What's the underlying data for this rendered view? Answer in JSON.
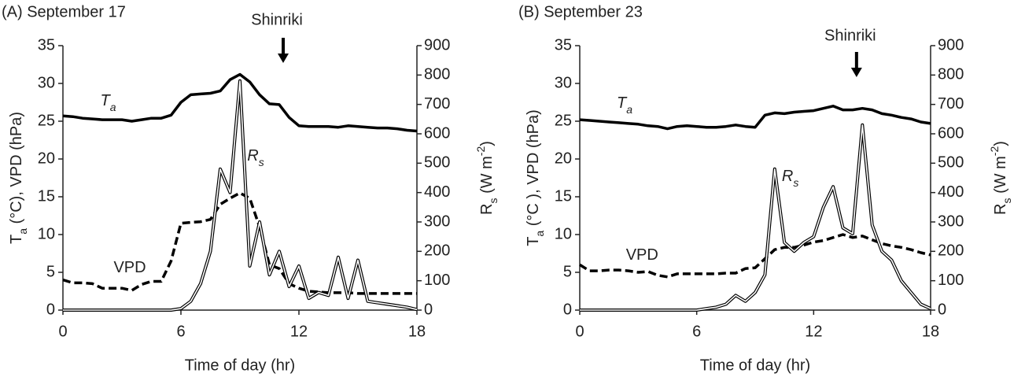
{
  "chart_data": [
    {
      "type": "line",
      "title": "(A) September 17",
      "xlabel": "Time of day (hr)",
      "ylabel": [
        "T",
        {
          "sub": "a"
        },
        " (°C), VPD (hPa)"
      ],
      "y2label": [
        "R",
        {
          "sub": "s"
        },
        " (W m",
        {
          "sup": "-2"
        },
        ")"
      ],
      "xlim": [
        0,
        18
      ],
      "xticks": [
        0,
        6,
        12,
        18
      ],
      "ylim": [
        0,
        35
      ],
      "yticks": [
        0,
        5,
        10,
        15,
        20,
        25,
        30,
        35
      ],
      "y2lim": [
        0,
        900
      ],
      "y2ticks": [
        0,
        100,
        200,
        300,
        400,
        500,
        600,
        700,
        800,
        900
      ],
      "annotations": [
        {
          "text": "Shinriki",
          "x": 11.2
        }
      ],
      "x": [
        0,
        0.5,
        1,
        1.5,
        2,
        2.5,
        3,
        3.5,
        4,
        4.5,
        5,
        5.5,
        6,
        6.5,
        7,
        7.5,
        8,
        8.5,
        9,
        9.5,
        10,
        10.5,
        11,
        11.5,
        12,
        12.5,
        13,
        13.5,
        14,
        14.5,
        15,
        15.5,
        16,
        16.5,
        17,
        17.5,
        18
      ],
      "series": [
        {
          "name": [
            "T",
            {
              "sub": "a"
            }
          ],
          "color": "#000000",
          "style": "solid",
          "values": [
            25.7,
            25.6,
            25.4,
            25.3,
            25.2,
            25.2,
            25.2,
            25.0,
            25.2,
            25.4,
            25.4,
            25.8,
            27.5,
            28.5,
            28.6,
            28.7,
            29.0,
            30.5,
            31.2,
            30.2,
            28.5,
            27.3,
            27.2,
            25.5,
            24.4,
            24.3,
            24.3,
            24.3,
            24.2,
            24.4,
            24.3,
            24.2,
            24.1,
            24.1,
            24.0,
            23.8,
            23.7
          ]
        },
        {
          "name": [
            "VPD"
          ],
          "color": "#000000",
          "style": "dashed",
          "values": [
            4.0,
            3.6,
            3.6,
            3.5,
            2.9,
            2.9,
            2.9,
            2.6,
            3.4,
            3.8,
            3.8,
            6.5,
            11.5,
            11.6,
            11.7,
            12.0,
            14.0,
            14.8,
            15.5,
            14.8,
            11.0,
            6.0,
            5.5,
            3.5,
            2.9,
            2.5,
            2.4,
            2.3,
            2.3,
            2.3,
            2.2,
            2.2,
            2.2,
            2.2,
            2.2,
            2.2,
            2.2
          ]
        },
        {
          "name": [
            "R",
            {
              "sub": "s"
            }
          ],
          "color": "#000000",
          "style": "double",
          "axis": "y2",
          "values": [
            0,
            0,
            0,
            0,
            0,
            0,
            0,
            0,
            0,
            0,
            0,
            0,
            5,
            30,
            90,
            200,
            480,
            400,
            780,
            150,
            300,
            120,
            200,
            80,
            150,
            40,
            60,
            50,
            180,
            40,
            170,
            30,
            25,
            20,
            15,
            10,
            2
          ]
        }
      ]
    },
    {
      "type": "line",
      "title": "(B) September 23",
      "xlabel": "Time of day (hr)",
      "ylabel": [
        "T",
        {
          "sub": "a"
        },
        " (°C ), VPD (hPa)"
      ],
      "y2label": [
        "R",
        {
          "sub": "s"
        },
        " (W m",
        {
          "sup": "-2"
        },
        ")"
      ],
      "xlim": [
        0,
        18
      ],
      "xticks": [
        0,
        6,
        12,
        18
      ],
      "ylim": [
        0,
        35
      ],
      "yticks": [
        0,
        5,
        10,
        15,
        20,
        25,
        30,
        35
      ],
      "y2lim": [
        0,
        900
      ],
      "y2ticks": [
        0,
        100,
        200,
        300,
        400,
        500,
        600,
        700,
        800,
        900
      ],
      "annotations": [
        {
          "text": "Shinriki",
          "x": 14.2
        }
      ],
      "x": [
        0,
        0.5,
        1,
        1.5,
        2,
        2.5,
        3,
        3.5,
        4,
        4.5,
        5,
        5.5,
        6,
        6.5,
        7,
        7.5,
        8,
        8.5,
        9,
        9.5,
        10,
        10.5,
        11,
        11.5,
        12,
        12.5,
        13,
        13.5,
        14,
        14.5,
        15,
        15.5,
        16,
        16.5,
        17,
        17.5,
        18
      ],
      "series": [
        {
          "name": [
            "T",
            {
              "sub": "a"
            }
          ],
          "color": "#000000",
          "style": "solid",
          "values": [
            25.2,
            25.1,
            25.0,
            24.9,
            24.8,
            24.7,
            24.6,
            24.4,
            24.3,
            24.0,
            24.3,
            24.4,
            24.3,
            24.2,
            24.2,
            24.3,
            24.5,
            24.3,
            24.2,
            25.8,
            26.1,
            26.0,
            26.2,
            26.3,
            26.4,
            26.7,
            27.0,
            26.5,
            26.5,
            26.7,
            26.5,
            26.0,
            25.8,
            25.5,
            25.3,
            24.9,
            24.7
          ]
        },
        {
          "name": [
            "VPD"
          ],
          "color": "#000000",
          "style": "dashed",
          "values": [
            6.0,
            5.2,
            5.2,
            5.3,
            5.3,
            5.2,
            5.0,
            5.1,
            4.6,
            4.4,
            4.8,
            4.8,
            4.8,
            4.8,
            4.8,
            4.9,
            4.9,
            5.5,
            5.6,
            6.8,
            8.0,
            8.3,
            8.3,
            8.6,
            9.0,
            9.2,
            9.6,
            10.0,
            9.6,
            9.8,
            9.3,
            8.8,
            8.5,
            8.3,
            8.0,
            7.6,
            7.3
          ]
        },
        {
          "name": [
            "R",
            {
              "sub": "s"
            }
          ],
          "color": "#000000",
          "style": "double",
          "axis": "y2",
          "values": [
            0,
            0,
            0,
            0,
            0,
            0,
            0,
            0,
            0,
            0,
            0,
            0,
            0,
            5,
            10,
            20,
            50,
            30,
            60,
            120,
            480,
            230,
            200,
            230,
            250,
            350,
            420,
            280,
            260,
            630,
            290,
            200,
            170,
            100,
            60,
            20,
            5
          ]
        }
      ]
    }
  ]
}
